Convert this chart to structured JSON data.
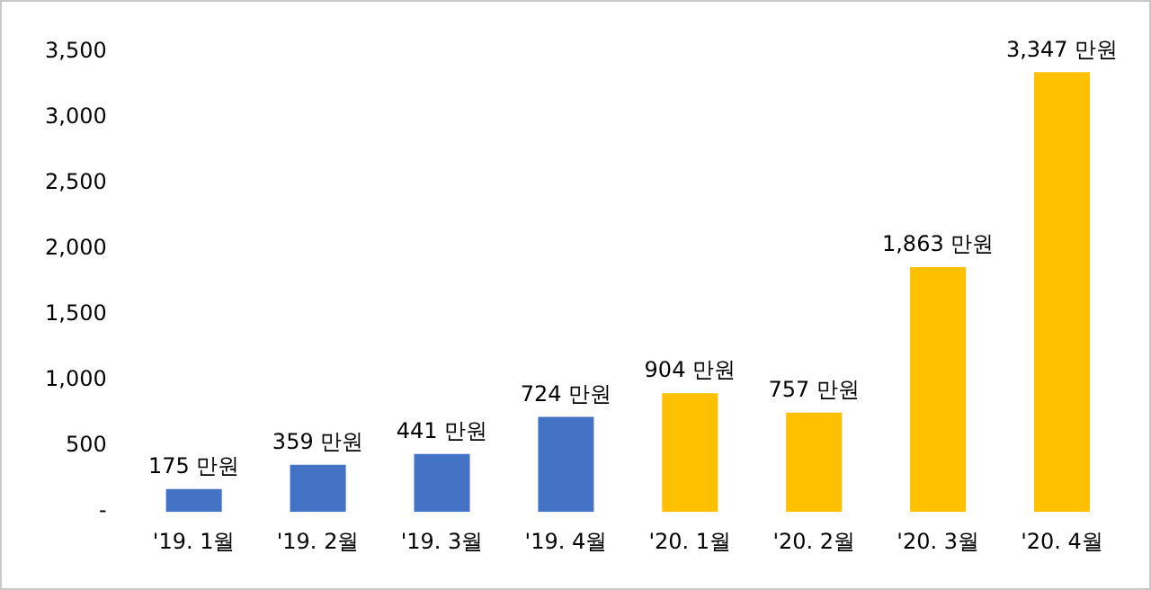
{
  "chart_data": {
    "type": "bar",
    "categories": [
      "'19. 1월",
      "'19. 2월",
      "'19. 3월",
      "'19. 4월",
      "'20. 1월",
      "'20. 2월",
      "'20. 3월",
      "'20. 4월"
    ],
    "values": [
      175,
      359,
      441,
      724,
      904,
      757,
      1863,
      3347
    ],
    "colors": [
      "#4472c4",
      "#4472c4",
      "#4472c4",
      "#4472c4",
      "#ffc000",
      "#ffc000",
      "#ffc000",
      "#ffc000"
    ],
    "value_labels": [
      "175 만원",
      "359 만원",
      "441 만원",
      "724 만원",
      "904 만원",
      "757 만원",
      "1,863 만원",
      "3,347 만원"
    ],
    "ylim": [
      0,
      3500
    ],
    "yticks": [
      {
        "value": 0,
        "label": "-"
      },
      {
        "value": 500,
        "label": "500"
      },
      {
        "value": 1000,
        "label": "1,000"
      },
      {
        "value": 1500,
        "label": "1,500"
      },
      {
        "value": 2000,
        "label": "2,000"
      },
      {
        "value": 2500,
        "label": "2,500"
      },
      {
        "value": 3000,
        "label": "3,000"
      },
      {
        "value": 3500,
        "label": "3,500"
      }
    ],
    "grid": false,
    "legend": false
  }
}
